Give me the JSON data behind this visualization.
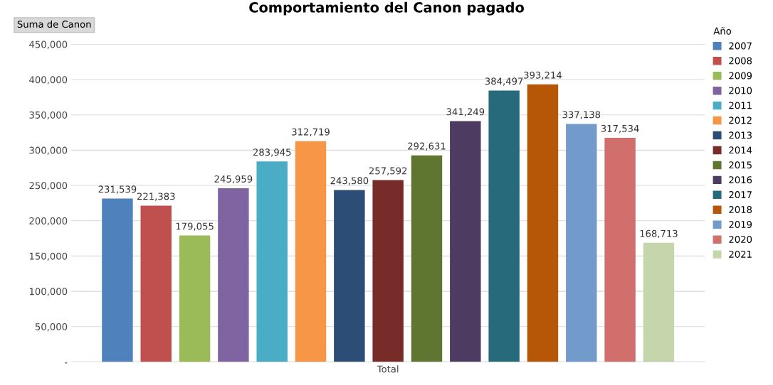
{
  "chart_data": {
    "type": "bar",
    "title": "Comportamiento del Canon pagado",
    "categories": [
      "Total"
    ],
    "series": [
      {
        "name": "2007",
        "color": "#4f81bd",
        "values": [
          231539
        ],
        "value_labels": [
          "231,539"
        ]
      },
      {
        "name": "2008",
        "color": "#c0504d",
        "values": [
          221383
        ],
        "value_labels": [
          "221,383"
        ]
      },
      {
        "name": "2009",
        "color": "#9bbb59",
        "values": [
          179055
        ],
        "value_labels": [
          "179,055"
        ]
      },
      {
        "name": "2010",
        "color": "#8064a2",
        "values": [
          245959
        ],
        "value_labels": [
          "245,959"
        ]
      },
      {
        "name": "2011",
        "color": "#4bacc6",
        "values": [
          283945
        ],
        "value_labels": [
          "283,945"
        ]
      },
      {
        "name": "2012",
        "color": "#f79646",
        "values": [
          312719
        ],
        "value_labels": [
          "312,719"
        ]
      },
      {
        "name": "2013",
        "color": "#2c4d75",
        "values": [
          243580
        ],
        "value_labels": [
          "243,580"
        ]
      },
      {
        "name": "2014",
        "color": "#772c2a",
        "values": [
          257592
        ],
        "value_labels": [
          "257,592"
        ]
      },
      {
        "name": "2015",
        "color": "#5f7530",
        "values": [
          292631
        ],
        "value_labels": [
          "292,631"
        ]
      },
      {
        "name": "2016",
        "color": "#4d3b62",
        "values": [
          341249
        ],
        "value_labels": [
          "341,249"
        ]
      },
      {
        "name": "2017",
        "color": "#276a7c",
        "values": [
          384497
        ],
        "value_labels": [
          "384,497"
        ]
      },
      {
        "name": "2018",
        "color": "#b65708",
        "values": [
          393214
        ],
        "value_labels": [
          "393,214"
        ]
      },
      {
        "name": "2019",
        "color": "#729aca",
        "values": [
          337138
        ],
        "value_labels": [
          "337,138"
        ]
      },
      {
        "name": "2020",
        "color": "#d06f6c",
        "values": [
          317534
        ],
        "value_labels": [
          "317,534"
        ]
      },
      {
        "name": "2021",
        "color": "#c6d6ac",
        "values": [
          168713
        ],
        "value_labels": [
          "168,713"
        ]
      }
    ],
    "ylim": [
      0,
      450000
    ],
    "yticks": [
      {
        "value": 0,
        "label": "-"
      },
      {
        "value": 50000,
        "label": "50,000"
      },
      {
        "value": 100000,
        "label": "100,000"
      },
      {
        "value": 150000,
        "label": "150,000"
      },
      {
        "value": 200000,
        "label": "200,000"
      },
      {
        "value": 250000,
        "label": "250,000"
      },
      {
        "value": 300000,
        "label": "300,000"
      },
      {
        "value": 350000,
        "label": "350,000"
      },
      {
        "value": 400000,
        "label": "400,000"
      },
      {
        "value": 450000,
        "label": "450,000"
      }
    ],
    "grid": "y",
    "legend": "right",
    "legend_title": "Año",
    "annotations": [
      "Suma de Canon"
    ]
  }
}
